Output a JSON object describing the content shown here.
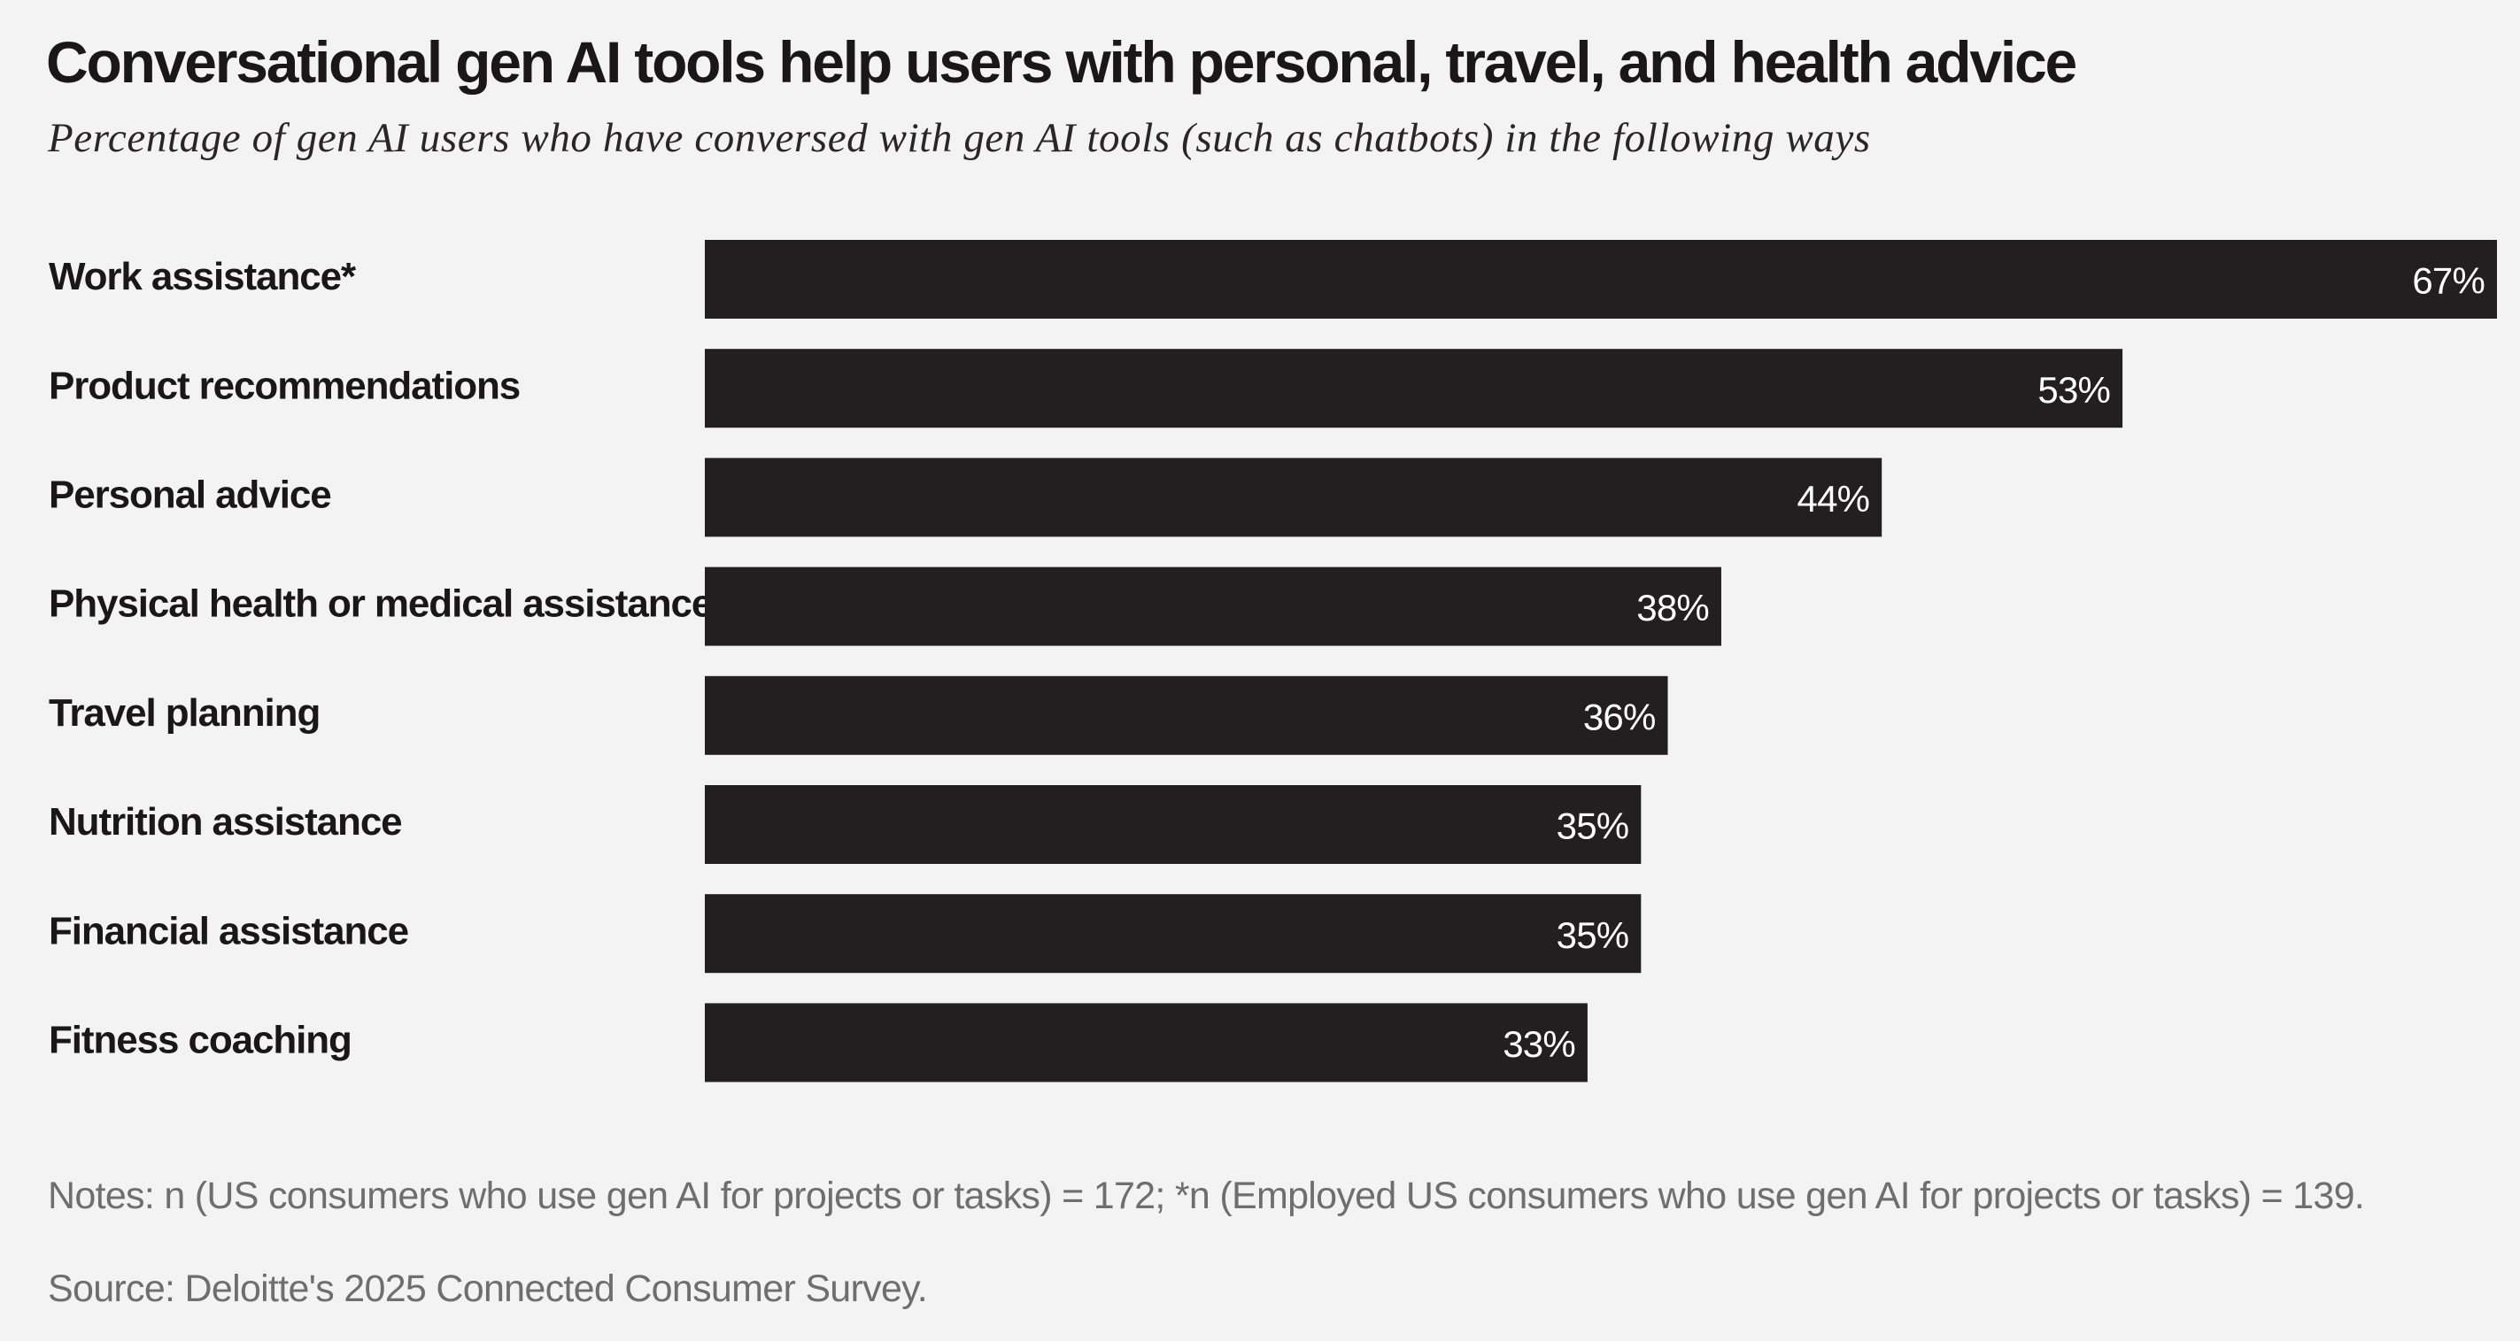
{
  "title": "Conversational gen AI tools help users with personal, travel, and health advice",
  "subtitle": "Percentage of gen AI users who have conversed with gen AI tools (such as chatbots) in the following ways",
  "notes": "Notes: n (US consumers who use gen AI for projects or tasks) = 172; *n (Employed US consumers who use gen AI for projects or tasks) = 139.",
  "source": "Source: Deloitte's 2025 Connected Consumer Survey.",
  "colors": {
    "bar": "#231f20",
    "background": "#f2f3f2",
    "value_label": "#ffffff",
    "notes_text": "#6e6e6e"
  },
  "chart_data": {
    "type": "bar",
    "orientation": "horizontal",
    "title": "Conversational gen AI tools help users with personal, travel, and health advice",
    "subtitle": "Percentage of gen AI users who have conversed with gen AI tools (such as chatbots) in the following ways",
    "categories": [
      "Work assistance*",
      "Product recommendations",
      "Personal advice",
      "Physical health or medical assistance",
      "Travel planning",
      "Nutrition assistance",
      "Financial assistance",
      "Fitness coaching"
    ],
    "values": [
      67,
      53,
      44,
      38,
      36,
      35,
      35,
      33
    ],
    "value_labels": [
      "67%",
      "53%",
      "44%",
      "38%",
      "36%",
      "35%",
      "35%",
      "33%"
    ],
    "unit": "%",
    "xlim": [
      0,
      67
    ],
    "grid": false,
    "legend": "none"
  }
}
